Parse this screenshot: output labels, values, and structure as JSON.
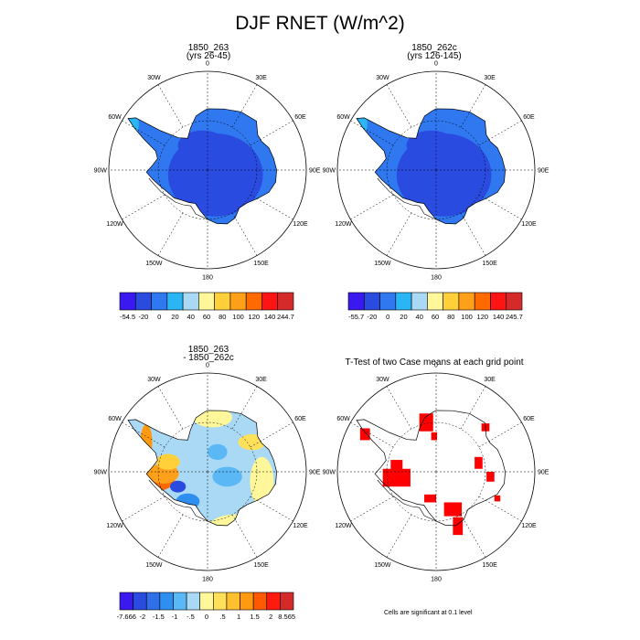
{
  "title": "DJF RNET (W/m^2)",
  "lon_labels": [
    "0",
    "30E",
    "60E",
    "90E",
    "120E",
    "150E",
    "180",
    "150W",
    "120W",
    "90W",
    "60W",
    "30W"
  ],
  "panels": [
    {
      "id": "p1",
      "title_line1": "1850_263",
      "title_line2": "(yrs 26-45)"
    },
    {
      "id": "p2",
      "title_line1": "1850_262c",
      "title_line2": "(yrs 126-145)"
    },
    {
      "id": "p3",
      "title_line1": "1850_263",
      "title_line2": "- 1850_262c"
    },
    {
      "id": "p4",
      "title_line1": "T-Test of two Case means at each grid point",
      "title_line2": ""
    }
  ],
  "colorbars": {
    "cb1": {
      "colors": [
        "#3a18f0",
        "#2a4be0",
        "#2f78f0",
        "#2ab6f5",
        "#a9d9f5",
        "#fff79a",
        "#ffd03a",
        "#ffa01a",
        "#ff6a00",
        "#ff1414",
        "#d42a2a"
      ],
      "labels": [
        "-54.5",
        "-20",
        "0",
        "20",
        "40",
        "60",
        "80",
        "100",
        "120",
        "140",
        "244.7"
      ]
    },
    "cb2": {
      "colors": [
        "#3a18f0",
        "#2a4be0",
        "#2f78f0",
        "#2ab6f5",
        "#a9d9f5",
        "#fff79a",
        "#ffd03a",
        "#ffa01a",
        "#ff6a00",
        "#ff1414",
        "#d42a2a"
      ],
      "labels": [
        "-55.7",
        "-20",
        "0",
        "20",
        "40",
        "60",
        "80",
        "100",
        "120",
        "140",
        "245.7"
      ]
    },
    "cb3": {
      "colors": [
        "#3a18f0",
        "#2a4be0",
        "#2f70e8",
        "#2f8ff0",
        "#5ab8f5",
        "#a9d9f5",
        "#fff79a",
        "#ffe05a",
        "#ffc030",
        "#ff9a10",
        "#ff5a00",
        "#ff1a10",
        "#d42a2a"
      ],
      "labels": [
        "-7.666",
        "-2",
        "-1.5",
        "-1",
        "-.5",
        "0",
        ".5",
        "1",
        "1.5",
        "2",
        "8.565"
      ]
    }
  },
  "chart_data": [
    {
      "type": "heatmap",
      "title": "1850_263 (yrs 26-45)",
      "projection": "south polar stereographic",
      "colorbar_min": -54.5,
      "colorbar_max": 244.7,
      "levels": [
        -20,
        0,
        20,
        40,
        60,
        80,
        100,
        120,
        140
      ],
      "dominant_level": "0 to 20",
      "grid": true
    },
    {
      "type": "heatmap",
      "title": "1850_262c (yrs 126-145)",
      "projection": "south polar stereographic",
      "colorbar_min": -55.7,
      "colorbar_max": 245.7,
      "levels": [
        -20,
        0,
        20,
        40,
        60,
        80,
        100,
        120,
        140
      ],
      "dominant_level": "0 to 20",
      "grid": true
    },
    {
      "type": "heatmap",
      "title": "1850_263 - 1850_262c",
      "projection": "south polar stereographic",
      "colorbar_min": -7.666,
      "colorbar_max": 8.565,
      "levels": [
        -2,
        -1.5,
        -1,
        -0.5,
        0,
        0.5,
        1,
        1.5,
        2
      ],
      "grid": true
    },
    {
      "type": "heatmap",
      "title": "T-Test of two Case means at each grid point",
      "projection": "south polar stereographic",
      "note": "Cells are significant at 0.1 level",
      "significant_color": "#ff0000",
      "grid": true
    }
  ],
  "footnote": "Cells are significant at 0.1 level"
}
